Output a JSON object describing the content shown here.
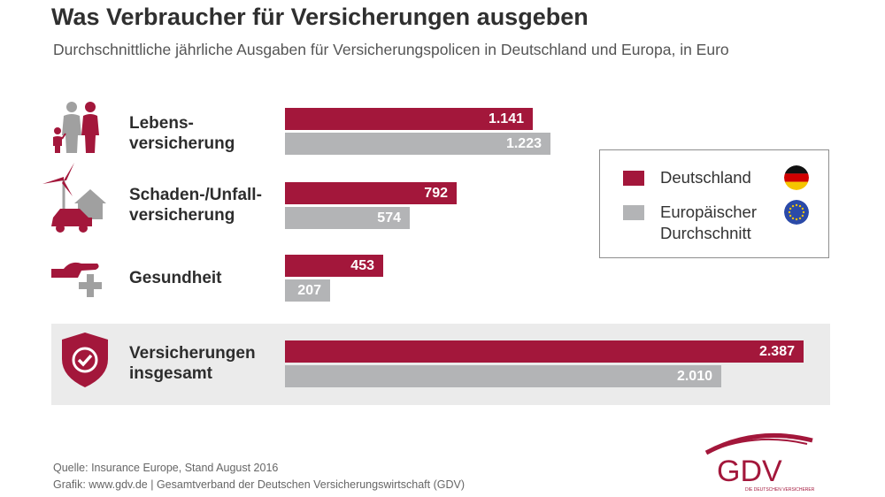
{
  "title": "Was Verbraucher für Versicherungen ausgeben",
  "subtitle": "Durchschnittliche jährliche Ausgaben für Versicherungspolicen in Deutschland und Europa, in Euro",
  "chart_data": {
    "type": "bar",
    "orientation": "horizontal",
    "title": "Was Verbraucher für Versicherungen ausgeben",
    "subtitle": "Durchschnittliche jährliche Ausgaben für Versicherungspolicen in Deutschland und Europa, in Euro",
    "categories": [
      "Lebensversicherung",
      "Schaden-/Unfallversicherung",
      "Gesundheit",
      "Versicherungen insgesamt"
    ],
    "category_labels": [
      "Lebens-\nversicherung",
      "Schaden-/Unfall-\nversicherung",
      "Gesundheit",
      "Versicherungen\ninsgesamt"
    ],
    "series": [
      {
        "name": "Deutschland",
        "color": "#a3173b",
        "values": [
          1141,
          792,
          453,
          2387
        ],
        "labels": [
          "1.141",
          "792",
          "453",
          "2.387"
        ]
      },
      {
        "name": "Europäischer Durchschnitt",
        "color": "#b3b4b6",
        "values": [
          1223,
          574,
          207,
          2010
        ],
        "labels": [
          "1.223",
          "574",
          "207",
          "2.010"
        ]
      }
    ],
    "xlim": [
      0,
      2387
    ],
    "legend": "right",
    "grid": false
  },
  "legend": {
    "items": [
      {
        "label": "Deutschland",
        "color": "#a3173b",
        "flag": "germany-flag"
      },
      {
        "label": "Europäischer\nDurchschnitt",
        "color": "#b3b4b6",
        "flag": "eu-flag"
      }
    ]
  },
  "footer": {
    "source": "Quelle: Insurance Europe, Stand August 2016",
    "graphic": "Grafik: www.gdv.de | Gesamtverband der Deutschen Versicherungswirtschaft (GDV)"
  },
  "logo": {
    "text": "GDV",
    "tagline": "DIE DEUTSCHEN VERSICHERER"
  },
  "colors": {
    "accent": "#a3173b",
    "grey": "#b3b4b6",
    "icon_grey": "#a0a0a0",
    "panel": "#ebebeb"
  }
}
